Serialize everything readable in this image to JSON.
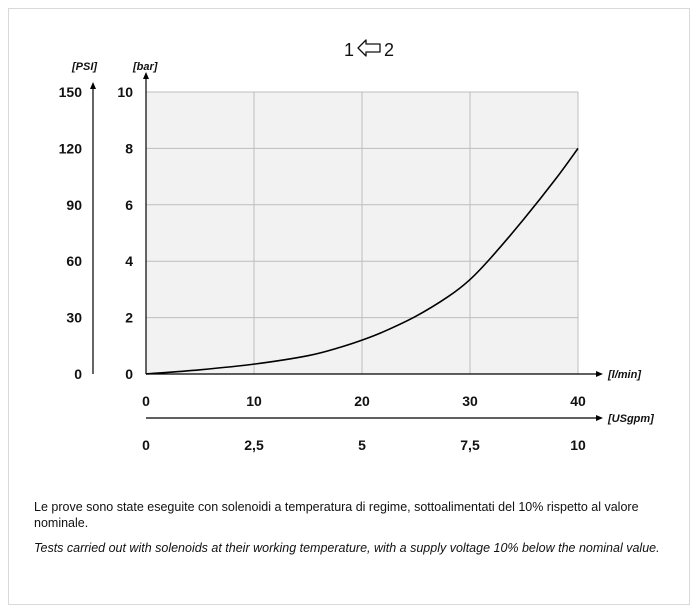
{
  "chart_data": {
    "type": "line",
    "title_left": "1",
    "title_right": "2",
    "title_icon": "left-arrow-icon",
    "x_primary": {
      "label": "[l/min]",
      "range": [
        0,
        40
      ],
      "ticks": [
        0,
        10,
        20,
        30,
        40
      ],
      "tick_labels": [
        "0",
        "10",
        "20",
        "30",
        "40"
      ]
    },
    "x_secondary": {
      "label": "[USgpm]",
      "range": [
        0,
        10
      ],
      "ticks": [
        0,
        2.5,
        5,
        7.5,
        10
      ],
      "tick_labels": [
        "0",
        "2,5",
        "5",
        "7,5",
        "10"
      ]
    },
    "y_primary": {
      "label": "[bar]",
      "range": [
        0,
        10
      ],
      "ticks": [
        0,
        2,
        4,
        6,
        8,
        10
      ],
      "tick_labels": [
        "0",
        "2",
        "4",
        "6",
        "8",
        "10"
      ]
    },
    "y_secondary": {
      "label": "[PSI]",
      "range": [
        0,
        150
      ],
      "ticks": [
        0,
        30,
        60,
        90,
        120,
        150
      ],
      "tick_labels": [
        "0",
        "30",
        "60",
        "90",
        "120",
        "150"
      ]
    },
    "grid": true,
    "series": [
      {
        "x": [
          0,
          5,
          10,
          15,
          18,
          20,
          22,
          25,
          28,
          30,
          32,
          35,
          38,
          40
        ],
        "y": [
          0,
          0.15,
          0.35,
          0.65,
          0.95,
          1.2,
          1.5,
          2.05,
          2.75,
          3.35,
          4.15,
          5.5,
          6.95,
          8.0
        ]
      }
    ]
  },
  "notes": {
    "italian": "Le prove sono state eseguite con solenoidi a temperatura di regime, sottoalimentati del 10% rispetto al valore nominale.",
    "english": "Tests carried out with solenoids at their working temperature, with a supply voltage 10% below the nominal value."
  }
}
